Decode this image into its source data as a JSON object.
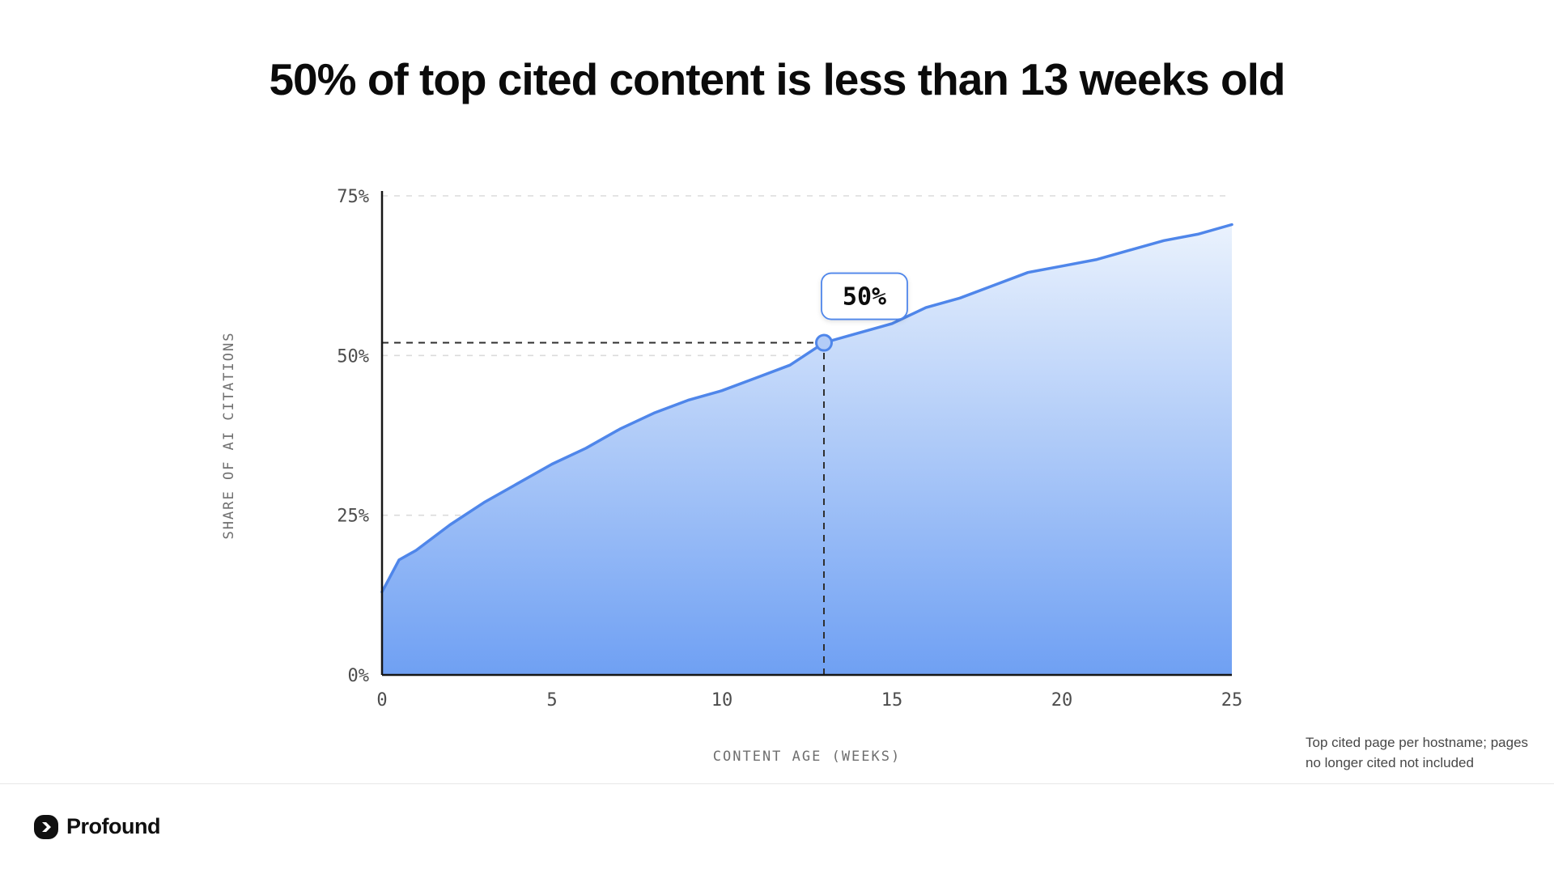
{
  "page": {
    "title": "50% of top cited content is less than 13 weeks old"
  },
  "chart_data": {
    "type": "area",
    "title": "50% of top cited content is less than 13 weeks old",
    "xlabel": "CONTENT AGE (WEEKS)",
    "ylabel": "SHARE OF AI CITATIONS",
    "xlim": [
      0,
      25
    ],
    "ylim": [
      0,
      75
    ],
    "x_ticks": {
      "values": [
        0,
        5,
        10,
        15,
        20,
        25
      ],
      "labels": [
        "0",
        "5",
        "10",
        "15",
        "20",
        "25"
      ]
    },
    "y_ticks": {
      "values": [
        0,
        25,
        50,
        75
      ],
      "labels": [
        "0%",
        "25%",
        "50%",
        "75%"
      ]
    },
    "grid": "horizontal-dashed",
    "legend": "none",
    "x": [
      0,
      0.5,
      1,
      2,
      3,
      4,
      5,
      6,
      7,
      8,
      9,
      10,
      11,
      12,
      13,
      14,
      15,
      16,
      17,
      18,
      19,
      20,
      21,
      22,
      23,
      24,
      25
    ],
    "values": [
      13,
      18,
      19.5,
      23.5,
      27,
      30,
      33,
      35.5,
      38.5,
      41,
      43,
      44.5,
      46.5,
      48.5,
      52,
      53.5,
      55,
      57.5,
      59,
      61,
      63,
      64,
      65,
      66.5,
      68,
      69,
      70.5
    ],
    "annotation": {
      "x": 13,
      "y": 52,
      "label": "50%"
    },
    "colors": {
      "line": "#4F86EA",
      "fill_top": "#EAF2FD",
      "fill_bottom": "#6FA0F3",
      "crosshair": "#2F2F2F",
      "grid": "#DBDBDB",
      "axis": "#161616",
      "marker_fill": "#B3CCF7",
      "annotation_border": "#4F86EA"
    }
  },
  "footnote": {
    "line1": "Top cited page per hostname; pages",
    "line2": "no longer cited not included"
  },
  "footer": {
    "brand": "Profound"
  }
}
